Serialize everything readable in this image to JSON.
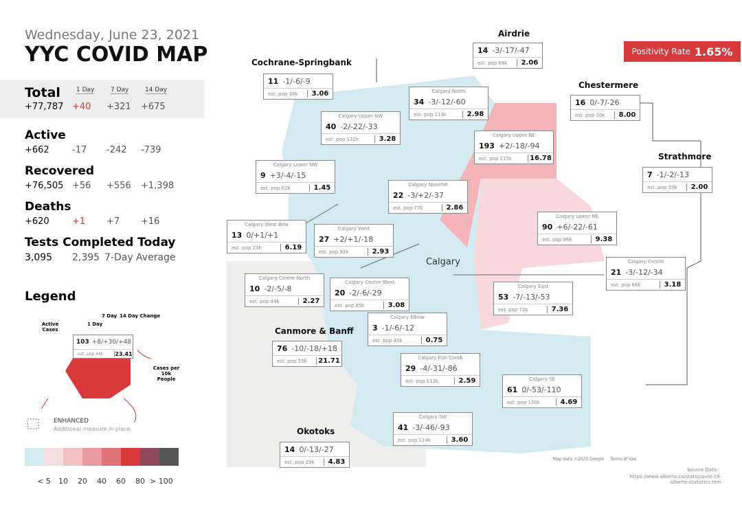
{
  "header": {
    "date": "Wednesday, June 23, 2021",
    "title": "YYC COVID MAP"
  },
  "positivity": {
    "label": "Positivity Rate",
    "value": "1.65%"
  },
  "total": {
    "label": "Total",
    "value": "+77,787",
    "columns": [
      "1 Day",
      "7 Day",
      "14 Day"
    ],
    "changes": [
      "+40",
      "+321",
      "+675"
    ]
  },
  "stats": [
    {
      "label": "Active",
      "value": "+662",
      "changes": [
        "-17",
        "-242",
        "-739"
      ]
    },
    {
      "label": "Recovered",
      "value": "+76,505",
      "changes": [
        "+56",
        "+556",
        "+1,398"
      ]
    },
    {
      "label": "Deaths",
      "value": "+620",
      "changes": [
        "+1",
        "+7",
        "+16"
      ]
    }
  ],
  "tests": {
    "label": "Tests Completed Today",
    "value": "3,095",
    "average": "2,395",
    "average_label": "7-Day Average"
  },
  "legend": {
    "title": "Legend",
    "active_label": "Active Cases",
    "day_label": "1 Day",
    "week_label": "7 Day",
    "change_label": "14 Day Change",
    "rate_label": "Cases per 10k People",
    "example": {
      "active": "103",
      "changes": "+8/+30/+48",
      "pop": "est. pop 44k",
      "rate": "23.41"
    },
    "enhanced": "ENHANCED",
    "enhanced_note": "Additional measure in place",
    "scale": [
      "< 5",
      "10",
      "20",
      "40",
      "60",
      "80",
      "> 100"
    ]
  },
  "regions": [
    {
      "name": "Airdrie",
      "active": "14",
      "changes": "-3/-17/-47",
      "pop": "est. pop 68k",
      "rate": "2.06"
    },
    {
      "name": "Cochrane-Springbank",
      "active": "11",
      "changes": "-1/-6/-9",
      "pop": "est. pop 36k",
      "rate": "3.06"
    },
    {
      "name": "Chestermere",
      "active": "16",
      "changes": "0/-7/-26",
      "pop": "est. pop 20k",
      "rate": "8.00"
    },
    {
      "name": "Strathmore",
      "active": "7",
      "changes": "-1/-2/-13",
      "pop": "est. pop 35k",
      "rate": "2.00"
    },
    {
      "name": "Canmore & Banff",
      "active": "76",
      "changes": "-10/-18/+18",
      "pop": "est. pop 35k",
      "rate": "21.71"
    },
    {
      "name": "Okotoks",
      "active": "14",
      "changes": "0/-13/-27",
      "pop": "est. pop 29k",
      "rate": "4.83"
    },
    {
      "name": "Calgary North",
      "active": "34",
      "changes": "-3/-12/-60",
      "pop": "est. pop 114k",
      "rate": "2.98"
    },
    {
      "name": "Calgary Upper NW",
      "active": "40",
      "changes": "-2/-22/-33",
      "pop": "est. pop 122k",
      "rate": "3.28"
    },
    {
      "name": "Calgary Upper NE",
      "active": "193",
      "changes": "+2/-18/-94",
      "pop": "est. pop 115k",
      "rate": "16.78"
    },
    {
      "name": "Calgary Lower NW",
      "active": "9",
      "changes": "+3/-4/-15",
      "pop": "est. pop 62k",
      "rate": "1.45"
    },
    {
      "name": "Calgary Nosehill",
      "active": "22",
      "changes": "-3/+2/-37",
      "pop": "est. pop 77k",
      "rate": "2.86"
    },
    {
      "name": "Calgary West Bow",
      "active": "13",
      "changes": "0/+1/+1",
      "pop": "est. pop 23k",
      "rate": "6.19"
    },
    {
      "name": "Calgary West",
      "active": "27",
      "changes": "+2/+1/-18",
      "pop": "est. pop 92k",
      "rate": "2.93"
    },
    {
      "name": "Calgary Lower NE",
      "active": "90",
      "changes": "+6/-22/-61",
      "pop": "est. pop 96k",
      "rate": "9.38"
    },
    {
      "name": "Calgary Centre North",
      "active": "10",
      "changes": "-2/-5/-8",
      "pop": "est. pop 44k",
      "rate": "2.27"
    },
    {
      "name": "Calgary Centre West",
      "active": "20",
      "changes": "-2/-6/-29",
      "pop": "est. pop 65k",
      "rate": "3.08"
    },
    {
      "name": "Calgary Centre",
      "active": "21",
      "changes": "-3/-12/-34",
      "pop": "est. pop 66k",
      "rate": "3.18"
    },
    {
      "name": "Calgary East",
      "active": "53",
      "changes": "-7/-13/-53",
      "pop": "est. pop 72k",
      "rate": "7.36"
    },
    {
      "name": "Calgary Elbow",
      "active": "3",
      "changes": "-1/-6/-12",
      "pop": "est. pop 40k",
      "rate": "0.75"
    },
    {
      "name": "Calgary Fish Creek",
      "active": "29",
      "changes": "-4/-31/-86",
      "pop": "est. pop 112k",
      "rate": "2.59"
    },
    {
      "name": "Calgary SE",
      "active": "61",
      "changes": "0/-53/-110",
      "pop": "est. pop 130k",
      "rate": "4.69"
    },
    {
      "name": "Calgary SW",
      "active": "41",
      "changes": "-3/-46/-93",
      "pop": "est. pop 114k",
      "rate": "3.60"
    }
  ],
  "map": {
    "city": "Calgary",
    "attribution": "Map data ©2021 Google",
    "terms": "Terms of Use",
    "source_label": "Source Data:",
    "source_url": "https://www.alberta.ca/stats/covid-19-alberta-statistics.htm"
  }
}
